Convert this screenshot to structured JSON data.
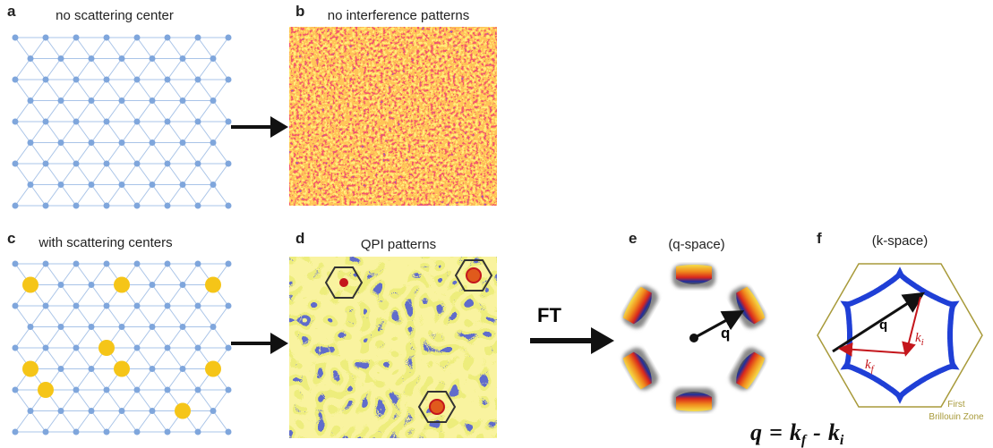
{
  "panels": [
    {
      "letter": "a",
      "caption": "no scattering center"
    },
    {
      "letter": "b",
      "caption": "no interference patterns"
    },
    {
      "letter": "c",
      "caption": "with scattering centers"
    },
    {
      "letter": "d",
      "caption": "QPI patterns"
    },
    {
      "letter": "e",
      "caption": "(q-space)",
      "vector_label": "q"
    },
    {
      "letter": "f",
      "caption": "(k-space)",
      "vector_label": "q",
      "ki_label": {
        "base": "k",
        "sub": "i"
      },
      "kf_label": {
        "base": "k",
        "sub": "f"
      },
      "zone_label": [
        "First",
        "Brillouin Zone"
      ]
    }
  ],
  "transform_label": "FT",
  "formula": {
    "lhs": "q",
    "eq": "=",
    "k1": "k",
    "sub1": "f",
    "minus": "-",
    "k2": "k",
    "sub2": "i"
  }
}
